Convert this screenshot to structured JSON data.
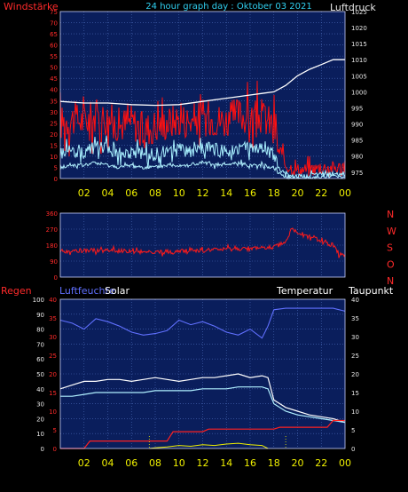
{
  "header": {
    "left_label": "Windstärke",
    "title": "24 hour graph day : Oktober 03 2021",
    "right_label": "Luftdruck"
  },
  "colors": {
    "background": "#000000",
    "plot": "#0a1e5c",
    "grid": "#4a6ab8",
    "wind_axis": "#ff2a2a",
    "pressure_axis": "#e8e8e8",
    "time_labels": "#f0f000",
    "title": "#30d0f0",
    "gust": "#ff1010",
    "wind": "#a8f0ff",
    "pressure": "#ffffff",
    "direction": "#ff1a1a",
    "humidity": "#6070ff",
    "temperature": "#ffffff",
    "dewpoint": "#b0f0ff",
    "rain": "#ff2020",
    "solar": "#f0f000"
  },
  "chart_data": [
    {
      "id": "wind_pressure",
      "type": "line",
      "left_axis": {
        "label": "Windstärke",
        "ticks": [
          "0",
          "5",
          "10",
          "15",
          "20",
          "25",
          "30",
          "35",
          "40",
          "45",
          "50",
          "55",
          "60",
          "65",
          "70",
          "75"
        ],
        "range": [
          0,
          75
        ]
      },
      "right_axis": {
        "label": "Luftdruck",
        "ticks": [
          "975",
          "980",
          "985",
          "990",
          "995",
          "1000",
          "1005",
          "1010",
          "1015",
          "1020",
          "1025"
        ],
        "range": [
          973,
          1025
        ]
      },
      "x_ticks": [
        "02",
        "04",
        "06",
        "08",
        "10",
        "12",
        "14",
        "16",
        "18",
        "20",
        "22",
        "00"
      ],
      "x_range": [
        0,
        24
      ],
      "series": [
        {
          "axis": "left",
          "color_key": "gust",
          "x": [
            0,
            1,
            2,
            3,
            4,
            5,
            6,
            7,
            8,
            9,
            10,
            11,
            12,
            13,
            14,
            15,
            16,
            17,
            18,
            18.5,
            19,
            20,
            21,
            22,
            23,
            24
          ],
          "values": [
            25,
            27,
            26,
            28,
            27,
            24,
            26,
            22,
            24,
            25,
            27,
            26,
            28,
            27,
            26,
            29,
            27,
            28,
            24,
            10,
            6,
            4,
            4,
            5,
            5,
            5
          ]
        },
        {
          "axis": "left",
          "color_key": "wind",
          "x": [
            0,
            1,
            2,
            3,
            4,
            5,
            6,
            7,
            8,
            9,
            10,
            11,
            12,
            13,
            14,
            15,
            16,
            17,
            18,
            18.5,
            19,
            20,
            21,
            22,
            23,
            24
          ],
          "values": [
            12,
            13,
            12,
            14,
            13,
            11,
            12,
            10,
            11,
            12,
            13,
            12,
            14,
            13,
            12,
            14,
            13,
            13,
            11,
            4,
            2,
            1,
            1,
            2,
            2,
            2
          ]
        },
        {
          "axis": "left",
          "color_key": "dewpoint",
          "x": [
            0,
            1,
            2,
            3,
            4,
            5,
            6,
            7,
            8,
            9,
            10,
            11,
            12,
            13,
            14,
            15,
            16,
            17,
            18,
            18.5,
            19,
            20,
            21,
            22,
            23,
            24
          ],
          "values": [
            5,
            6,
            6,
            7,
            6,
            5,
            6,
            5,
            5,
            6,
            6,
            6,
            7,
            6,
            6,
            7,
            6,
            6,
            5,
            2,
            1,
            0,
            0,
            1,
            1,
            1
          ]
        },
        {
          "axis": "right",
          "color_key": "pressure",
          "x": [
            0,
            2,
            4,
            6,
            8,
            10,
            12,
            14,
            16,
            17,
            18,
            19,
            20,
            21,
            22,
            23,
            24
          ],
          "values": [
            997,
            996.5,
            996.5,
            996,
            995.8,
            996,
            997,
            998,
            999,
            999.5,
            1000,
            1002,
            1005,
            1007,
            1008.5,
            1010,
            1010
          ]
        }
      ]
    },
    {
      "id": "direction",
      "type": "line",
      "left_axis": {
        "ticks": [
          "0",
          "90",
          "180",
          "270",
          "360"
        ],
        "range": [
          0,
          360
        ]
      },
      "right_axis": {
        "ticks": [
          "N",
          "W",
          "S",
          "O",
          "N"
        ]
      },
      "x_range": [
        0,
        24
      ],
      "series": [
        {
          "color_key": "direction",
          "x": [
            0,
            2,
            4,
            6,
            8,
            10,
            12,
            14,
            16,
            17,
            18,
            19,
            19.5,
            20,
            21,
            22,
            23,
            23.5,
            24
          ],
          "values": [
            145,
            150,
            150,
            145,
            140,
            145,
            150,
            155,
            160,
            165,
            170,
            195,
            270,
            250,
            230,
            200,
            180,
            130,
            120
          ]
        }
      ]
    },
    {
      "id": "humidity_temp",
      "type": "line",
      "labels": {
        "rain": "Regen",
        "humidity": "Luftfeuchte",
        "solar": "Solar",
        "temperature": "Temperatur",
        "dewpoint": "Taupunkt"
      },
      "left_axis": {
        "ticks": [
          "0",
          "10",
          "20",
          "30",
          "40",
          "50",
          "60",
          "70",
          "80",
          "90",
          "100"
        ],
        "range": [
          0,
          100
        ]
      },
      "right_axis": {
        "ticks": [
          "0",
          "5",
          "10",
          "15",
          "20",
          "25",
          "30",
          "35",
          "40"
        ],
        "range": [
          0,
          40
        ]
      },
      "rain_axis": {
        "ticks": [
          "0",
          "5",
          "10",
          "15",
          "20",
          "25",
          "30",
          "35",
          "40"
        ],
        "range": [
          0,
          40
        ]
      },
      "x_ticks": [
        "02",
        "04",
        "06",
        "08",
        "10",
        "12",
        "14",
        "16",
        "18",
        "20",
        "22",
        "00"
      ],
      "x_range": [
        0,
        24
      ],
      "series": [
        {
          "axis": "left",
          "color_key": "humidity",
          "x": [
            0,
            1,
            2,
            3,
            4,
            5,
            6,
            7,
            8,
            9,
            10,
            11,
            12,
            13,
            14,
            15,
            16,
            17,
            17.5,
            18,
            19,
            20,
            21,
            22,
            23,
            24
          ],
          "values": [
            86,
            84,
            80,
            87,
            85,
            82,
            78,
            76,
            77,
            79,
            86,
            83,
            85,
            82,
            78,
            76,
            80,
            74,
            82,
            93,
            94,
            94,
            94,
            94,
            94,
            92
          ]
        },
        {
          "axis": "right",
          "color_key": "temperature",
          "x": [
            0,
            1,
            2,
            3,
            4,
            5,
            6,
            7,
            8,
            9,
            10,
            11,
            12,
            13,
            14,
            15,
            16,
            17,
            17.5,
            18,
            19,
            20,
            21,
            22,
            23,
            24
          ],
          "values": [
            16,
            17,
            18,
            18,
            18.5,
            18.5,
            18,
            18.5,
            19,
            18.5,
            18,
            18.5,
            19,
            19,
            19.5,
            20,
            19,
            19.5,
            19,
            13,
            11,
            10,
            9,
            8.5,
            8,
            7
          ]
        },
        {
          "axis": "right",
          "color_key": "dewpoint",
          "x": [
            0,
            1,
            2,
            3,
            4,
            5,
            6,
            7,
            8,
            9,
            10,
            11,
            12,
            13,
            14,
            15,
            16,
            17,
            17.5,
            18,
            19,
            20,
            21,
            22,
            23,
            24
          ],
          "values": [
            14,
            14,
            14.5,
            15,
            15,
            15,
            15,
            15,
            15.5,
            15.5,
            15.5,
            15.5,
            16,
            16,
            16,
            16.5,
            16.5,
            16.5,
            16,
            12,
            10,
            9,
            8.5,
            8,
            7.5,
            7
          ]
        },
        {
          "axis": "rain",
          "color_key": "rain",
          "x": [
            0,
            2,
            2.5,
            9,
            9.5,
            12,
            12.5,
            18,
            18.5,
            22.5,
            23,
            24
          ],
          "values": [
            0,
            0,
            2,
            2,
            4.5,
            4.5,
            5.2,
            5.2,
            5.7,
            5.7,
            7.5,
            7.5
          ]
        },
        {
          "axis": "left",
          "color_key": "solar",
          "x": [
            7.5,
            8,
            9,
            10,
            11,
            12,
            13,
            14,
            15,
            16,
            17,
            17.5
          ],
          "values": [
            0,
            0.5,
            1,
            2,
            1.5,
            2.5,
            2,
            3,
            3.5,
            2.5,
            2,
            0
          ]
        }
      ]
    }
  ]
}
